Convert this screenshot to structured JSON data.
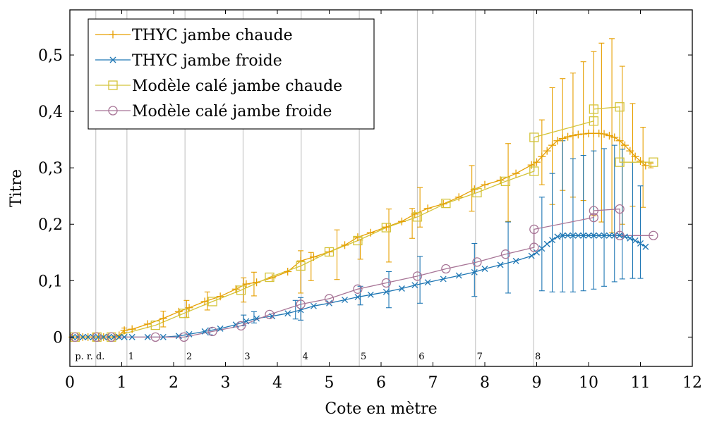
{
  "chart_data": {
    "type": "line",
    "xlabel": "Cote en mètre",
    "ylabel": "Titre",
    "xlim": [
      0,
      12
    ],
    "ylim": [
      -0.052,
      0.58
    ],
    "x_ticks": [
      0,
      1,
      2,
      3,
      4,
      5,
      6,
      7,
      8,
      9,
      10,
      11,
      12
    ],
    "x_tick_labels": [
      "0",
      "1",
      "2",
      "3",
      "4",
      "5",
      "6",
      "7",
      "8",
      "9",
      "10",
      "11",
      "12"
    ],
    "y_ticks": [
      0,
      0.1,
      0.2,
      0.3,
      0.4,
      0.5
    ],
    "y_tick_labels": [
      "0",
      "0,1",
      "0,2",
      "0,3",
      "0,4",
      "0,5"
    ],
    "grid": "vertical lines at grid section boundaries",
    "legend_position": "top-left",
    "vlines": [
      0.5,
      1.1,
      2.22,
      3.34,
      4.46,
      5.58,
      6.7,
      7.82,
      8.94
    ],
    "vline_labels": [
      {
        "x": 0.5,
        "text": "p. r. d."
      },
      {
        "x": 1.1,
        "text": "1"
      },
      {
        "x": 2.22,
        "text": "2"
      },
      {
        "x": 3.34,
        "text": "3"
      },
      {
        "x": 4.46,
        "text": "4"
      },
      {
        "x": 5.58,
        "text": "5"
      },
      {
        "x": 6.7,
        "text": "6"
      },
      {
        "x": 7.82,
        "text": "7"
      },
      {
        "x": 8.94,
        "text": "8"
      }
    ],
    "series": [
      {
        "name": "THYC jambe chaude",
        "color": "#E69F00",
        "marker": "plus",
        "x": [
          0.05,
          0.15,
          0.25,
          0.35,
          0.45,
          0.55,
          0.65,
          0.75,
          0.85,
          0.95,
          1.05,
          1.2,
          1.5,
          1.8,
          2.1,
          2.3,
          2.6,
          2.9,
          3.2,
          3.4,
          3.6,
          3.9,
          4.2,
          4.45,
          4.7,
          5.0,
          5.3,
          5.55,
          5.8,
          6.1,
          6.4,
          6.65,
          6.9,
          7.2,
          7.5,
          7.8,
          8.0,
          8.3,
          8.6,
          8.9,
          9.0,
          9.1,
          9.2,
          9.3,
          9.4,
          9.5,
          9.6,
          9.7,
          9.8,
          9.9,
          10.0,
          10.1,
          10.2,
          10.3,
          10.4,
          10.5,
          10.6,
          10.7,
          10.8,
          10.9,
          11.0,
          11.1
        ],
        "y": [
          0,
          0,
          0,
          0,
          0,
          0,
          0,
          0,
          0,
          0.003,
          0.012,
          0.014,
          0.023,
          0.033,
          0.045,
          0.052,
          0.063,
          0.072,
          0.085,
          0.094,
          0.097,
          0.105,
          0.116,
          0.135,
          0.142,
          0.151,
          0.163,
          0.177,
          0.185,
          0.195,
          0.205,
          0.218,
          0.228,
          0.236,
          0.248,
          0.262,
          0.27,
          0.278,
          0.29,
          0.305,
          0.31,
          0.32,
          0.33,
          0.34,
          0.348,
          0.352,
          0.355,
          0.357,
          0.359,
          0.36,
          0.361,
          0.361,
          0.361,
          0.36,
          0.357,
          0.354,
          0.348,
          0.34,
          0.33,
          0.32,
          0.312,
          0.304
        ],
        "errorbars": [
          {
            "x": 1.05,
            "lo": 0.008,
            "hi": 0.016
          },
          {
            "x": 1.8,
            "lo": 0.018,
            "hi": 0.046
          },
          {
            "x": 2.25,
            "lo": 0.035,
            "hi": 0.065
          },
          {
            "x": 2.65,
            "lo": 0.048,
            "hi": 0.08
          },
          {
            "x": 3.35,
            "lo": 0.062,
            "hi": 0.105
          },
          {
            "x": 3.55,
            "lo": 0.073,
            "hi": 0.115
          },
          {
            "x": 4.45,
            "lo": 0.078,
            "hi": 0.153
          },
          {
            "x": 4.65,
            "lo": 0.1,
            "hi": 0.15
          },
          {
            "x": 5.15,
            "lo": 0.102,
            "hi": 0.19
          },
          {
            "x": 5.6,
            "lo": 0.138,
            "hi": 0.172
          },
          {
            "x": 6.15,
            "lo": 0.133,
            "hi": 0.227
          },
          {
            "x": 6.6,
            "lo": 0.175,
            "hi": 0.228
          },
          {
            "x": 6.75,
            "lo": 0.195,
            "hi": 0.265
          },
          {
            "x": 7.75,
            "lo": 0.223,
            "hi": 0.304
          },
          {
            "x": 8.45,
            "lo": 0.205,
            "hi": 0.343
          },
          {
            "x": 9.1,
            "lo": 0.27,
            "hi": 0.385
          },
          {
            "x": 9.3,
            "lo": 0.235,
            "hi": 0.442
          },
          {
            "x": 9.5,
            "lo": 0.26,
            "hi": 0.458
          },
          {
            "x": 9.7,
            "lo": 0.248,
            "hi": 0.468
          },
          {
            "x": 9.9,
            "lo": 0.242,
            "hi": 0.488
          },
          {
            "x": 10.1,
            "lo": 0.215,
            "hi": 0.506
          },
          {
            "x": 10.25,
            "lo": 0.204,
            "hi": 0.521
          },
          {
            "x": 10.45,
            "lo": 0.185,
            "hi": 0.529
          },
          {
            "x": 10.65,
            "lo": 0.2,
            "hi": 0.48
          },
          {
            "x": 10.85,
            "lo": 0.232,
            "hi": 0.414
          },
          {
            "x": 11.05,
            "lo": 0.23,
            "hi": 0.372
          },
          {
            "x": 11.2,
            "lo": 0.3,
            "hi": 0.308
          }
        ]
      },
      {
        "name": "THYC jambe froide",
        "color": "#1F77B4",
        "marker": "x",
        "x": [
          0.05,
          0.15,
          0.25,
          0.35,
          0.45,
          0.55,
          0.65,
          0.75,
          0.85,
          0.95,
          1.05,
          1.2,
          1.5,
          1.8,
          2.1,
          2.3,
          2.6,
          2.9,
          3.2,
          3.4,
          3.6,
          3.9,
          4.2,
          4.45,
          4.7,
          5.0,
          5.3,
          5.55,
          5.8,
          6.1,
          6.4,
          6.65,
          6.9,
          7.2,
          7.5,
          7.8,
          8.0,
          8.3,
          8.6,
          8.9,
          9.0,
          9.1,
          9.2,
          9.3,
          9.4,
          9.5,
          9.6,
          9.7,
          9.8,
          9.9,
          10.0,
          10.1,
          10.2,
          10.3,
          10.4,
          10.5,
          10.6,
          10.7,
          10.8,
          10.9,
          11.0,
          11.1
        ],
        "y": [
          0,
          0,
          0,
          0,
          0,
          0,
          0,
          0,
          0,
          0,
          0,
          0,
          0,
          0,
          0.002,
          0.005,
          0.01,
          0.015,
          0.022,
          0.028,
          0.033,
          0.037,
          0.042,
          0.048,
          0.055,
          0.06,
          0.066,
          0.071,
          0.075,
          0.08,
          0.086,
          0.092,
          0.097,
          0.103,
          0.109,
          0.115,
          0.121,
          0.128,
          0.135,
          0.144,
          0.15,
          0.157,
          0.165,
          0.172,
          0.178,
          0.18,
          0.18,
          0.18,
          0.18,
          0.18,
          0.18,
          0.18,
          0.18,
          0.18,
          0.18,
          0.18,
          0.18,
          0.178,
          0.175,
          0.171,
          0.166,
          0.16
        ],
        "errorbars": [
          {
            "x": 2.7,
            "lo": 0.004,
            "hi": 0.016
          },
          {
            "x": 3.35,
            "lo": 0.02,
            "hi": 0.039
          },
          {
            "x": 3.55,
            "lo": 0.025,
            "hi": 0.045
          },
          {
            "x": 4.35,
            "lo": 0.032,
            "hi": 0.065
          },
          {
            "x": 4.45,
            "lo": 0.03,
            "hi": 0.07
          },
          {
            "x": 5.6,
            "lo": 0.057,
            "hi": 0.09
          },
          {
            "x": 6.15,
            "lo": 0.052,
            "hi": 0.116
          },
          {
            "x": 6.75,
            "lo": 0.06,
            "hi": 0.143
          },
          {
            "x": 7.8,
            "lo": 0.072,
            "hi": 0.166
          },
          {
            "x": 8.45,
            "lo": 0.078,
            "hi": 0.204
          },
          {
            "x": 9.1,
            "lo": 0.082,
            "hi": 0.248
          },
          {
            "x": 9.3,
            "lo": 0.08,
            "hi": 0.29
          },
          {
            "x": 9.5,
            "lo": 0.08,
            "hi": 0.348
          },
          {
            "x": 9.7,
            "lo": 0.08,
            "hi": 0.316
          },
          {
            "x": 9.9,
            "lo": 0.082,
            "hi": 0.322
          },
          {
            "x": 10.1,
            "lo": 0.085,
            "hi": 0.33
          },
          {
            "x": 10.3,
            "lo": 0.09,
            "hi": 0.334
          },
          {
            "x": 10.5,
            "lo": 0.098,
            "hi": 0.34
          },
          {
            "x": 10.65,
            "lo": 0.103,
            "hi": 0.333
          },
          {
            "x": 10.85,
            "lo": 0.104,
            "hi": 0.31
          },
          {
            "x": 11.0,
            "lo": 0.104,
            "hi": 0.268
          }
        ]
      },
      {
        "name": "Modèle calé jambe chaude",
        "color": "#D4C43A",
        "marker": "square",
        "x": [
          0.1,
          0.52,
          0.8,
          1.65,
          2.2,
          2.75,
          3.3,
          3.85,
          4.45,
          5.0,
          5.55,
          6.1,
          6.7,
          7.25,
          7.85,
          8.4,
          8.95,
          8.95,
          10.1,
          10.1,
          10.6,
          10.6,
          11.25
        ],
        "y": [
          0,
          0,
          0,
          0.021,
          0.042,
          0.063,
          0.083,
          0.106,
          0.126,
          0.151,
          0.171,
          0.194,
          0.213,
          0.237,
          0.256,
          0.276,
          0.294,
          0.354,
          0.383,
          0.404,
          0.408,
          0.31,
          0.31
        ]
      },
      {
        "name": "Modèle calé jambe froide",
        "color": "#A77496",
        "marker": "circle",
        "x": [
          0.1,
          0.52,
          0.8,
          1.65,
          2.2,
          2.75,
          3.3,
          3.85,
          4.45,
          5.0,
          5.55,
          6.1,
          6.7,
          7.25,
          7.85,
          8.4,
          8.95,
          8.95,
          10.1,
          10.1,
          10.6,
          10.6,
          11.25
        ],
        "y": [
          0,
          0,
          0,
          0,
          0,
          0.01,
          0.02,
          0.04,
          0.058,
          0.068,
          0.085,
          0.096,
          0.108,
          0.121,
          0.133,
          0.147,
          0.159,
          0.191,
          0.212,
          0.224,
          0.227,
          0.18,
          0.18
        ]
      }
    ]
  }
}
